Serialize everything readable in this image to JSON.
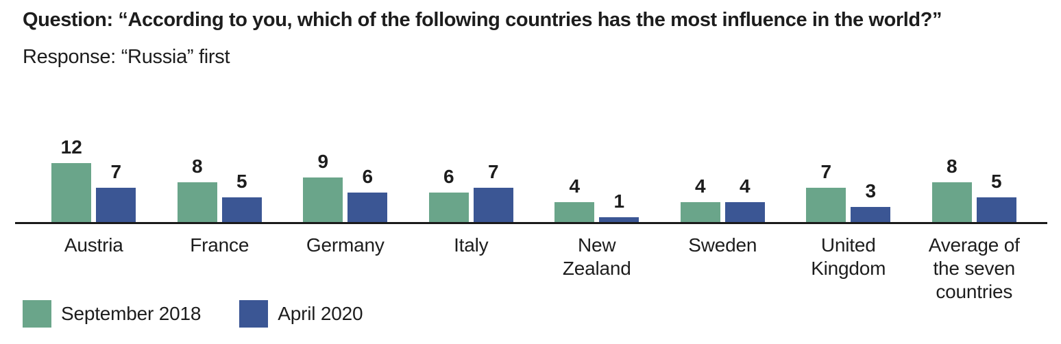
{
  "chart_data": {
    "type": "bar",
    "title": "Question: “According to you, which of the following countries has the most influence in the world?”",
    "subtitle": "Response: “Russia” first",
    "categories": [
      "Austria",
      "France",
      "Germany",
      "Italy",
      "New\nZealand",
      "Sweden",
      "United\nKingdom",
      "Average of\nthe seven\ncountries"
    ],
    "series": [
      {
        "name": "September 2018",
        "color": "#6aa58a",
        "values": [
          12,
          8,
          9,
          6,
          4,
          4,
          7,
          8
        ]
      },
      {
        "name": "April 2020",
        "color": "#3b5694",
        "values": [
          7,
          5,
          6,
          7,
          1,
          4,
          3,
          5
        ]
      }
    ],
    "ylim": [
      0,
      13
    ],
    "grid": false,
    "value_labels": true,
    "legend_position": "bottom-left",
    "axis_color": "#1a1a1a",
    "text_color": "#1d1d1d"
  }
}
